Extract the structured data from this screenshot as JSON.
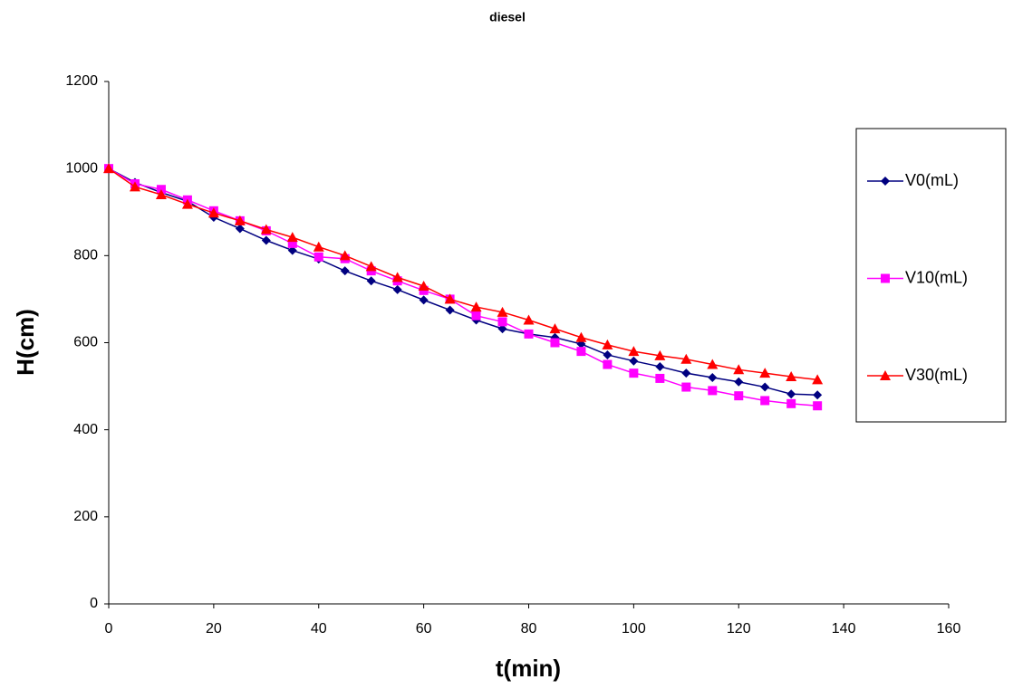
{
  "chart_data": {
    "type": "line",
    "title": "diesel",
    "x_label": "t(min)",
    "y_label": "H(cm)",
    "x": [
      0,
      5,
      10,
      15,
      20,
      25,
      30,
      35,
      40,
      45,
      50,
      55,
      60,
      65,
      70,
      75,
      80,
      85,
      90,
      95,
      100,
      105,
      110,
      115,
      120,
      125,
      130,
      135
    ],
    "series": [
      {
        "name": "V0(mL)",
        "color": "#000080",
        "marker": "diamond",
        "values": [
          1000,
          968,
          945,
          925,
          888,
          862,
          835,
          812,
          792,
          765,
          742,
          722,
          698,
          675,
          652,
          632,
          620,
          612,
          597,
          572,
          558,
          545,
          530,
          520,
          510,
          498,
          482,
          480
        ]
      },
      {
        "name": "V10(mL)",
        "color": "#ff00ff",
        "marker": "square",
        "values": [
          1000,
          965,
          952,
          928,
          903,
          880,
          857,
          828,
          797,
          793,
          765,
          742,
          720,
          700,
          662,
          648,
          620,
          600,
          580,
          550,
          530,
          518,
          498,
          490,
          478,
          467,
          460,
          455
        ]
      },
      {
        "name": "V30(mL)",
        "color": "#ff0000",
        "marker": "triangle",
        "values": [
          1000,
          958,
          940,
          918,
          898,
          880,
          860,
          842,
          820,
          800,
          775,
          750,
          730,
          700,
          682,
          670,
          652,
          632,
          612,
          595,
          580,
          570,
          562,
          550,
          538,
          530,
          522,
          515
        ]
      }
    ],
    "xlim": [
      0,
      160
    ],
    "xticks": [
      0,
      20,
      40,
      60,
      80,
      100,
      120,
      140,
      160
    ],
    "ylim": [
      0,
      1200
    ],
    "yticks": [
      0,
      200,
      400,
      600,
      800,
      1000,
      1200
    ],
    "grid": false,
    "legend": "right"
  }
}
